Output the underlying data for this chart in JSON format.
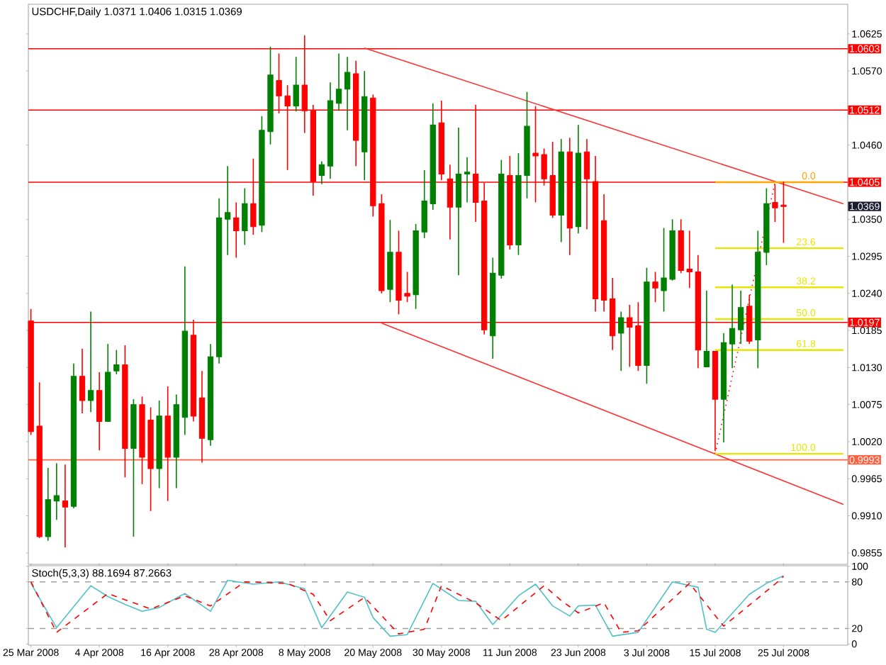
{
  "chart_data": [
    {
      "type": "candlestick",
      "title": "USDCHF,Daily 1.0371 1.0406 1.0315 1.0369",
      "categories": [
        null,
        null,
        null,
        null,
        null,
        null,
        null,
        null,
        null,
        null,
        null,
        null,
        null,
        null,
        null,
        null,
        null,
        null,
        null,
        null,
        null,
        null,
        null,
        null,
        null,
        null,
        null,
        null,
        null,
        null,
        null,
        null,
        null,
        null,
        null,
        null,
        null,
        null,
        null,
        null,
        null,
        null,
        null,
        null,
        null,
        null,
        null,
        null,
        null,
        null,
        null,
        null,
        null,
        null,
        null,
        null,
        null,
        null,
        null,
        null,
        null,
        null,
        null,
        null,
        null,
        null,
        null,
        null,
        null,
        null,
        null,
        null,
        null,
        null,
        null,
        null,
        null,
        null,
        null,
        null,
        null,
        null,
        null,
        null,
        null,
        null,
        null,
        null,
        null,
        null,
        null,
        null,
        null,
        null,
        null,
        null
      ],
      "ohlc": [
        [
          1.0199,
          1.0217,
          1.003,
          1.0035
        ],
        [
          1.0043,
          1.0108,
          0.9877,
          0.9879
        ],
        [
          0.9879,
          0.9981,
          0.9873,
          0.9934
        ],
        [
          0.9932,
          0.9988,
          0.9904,
          0.994
        ],
        [
          0.9932,
          0.9986,
          0.9863,
          0.9923
        ],
        [
          0.9924,
          1.0136,
          0.9921,
          1.0117
        ],
        [
          1.0117,
          1.0158,
          1.0062,
          1.0081
        ],
        [
          1.0081,
          1.0213,
          1.0064,
          1.0096
        ],
        [
          1.0096,
          1.0123,
          1.0007,
          1.005
        ],
        [
          1.005,
          1.0165,
          1.005,
          1.0123
        ],
        [
          1.0125,
          1.0156,
          1.012,
          1.0134
        ],
        [
          1.0134,
          1.0163,
          0.9967,
          1.001
        ],
        [
          1.001,
          1.0083,
          0.9879,
          1.0075
        ],
        [
          1.0075,
          1.0087,
          0.9957,
          0.9997
        ],
        [
          1.0052,
          1.0071,
          0.9917,
          0.998
        ],
        [
          0.998,
          1.0081,
          0.9951,
          1.0058
        ],
        [
          1.0058,
          1.0102,
          0.9932,
          0.9997
        ],
        [
          0.9997,
          1.009,
          0.9951,
          1.0075
        ],
        [
          1.0056,
          1.028,
          1.003,
          1.0184
        ],
        [
          1.0178,
          1.0201,
          1.005,
          1.0058
        ],
        [
          1.0085,
          1.0125,
          0.9989,
          1.0025
        ],
        [
          1.0023,
          1.0165,
          1.0014,
          1.0146
        ],
        [
          1.0146,
          1.0381,
          1.0136,
          1.0352
        ],
        [
          1.035,
          1.0429,
          1.0297,
          1.036
        ],
        [
          1.0352,
          1.0375,
          1.0293,
          1.0333
        ],
        [
          1.0333,
          1.0396,
          1.0312,
          1.0373
        ],
        [
          1.0373,
          1.044,
          1.0327,
          1.0339
        ],
        [
          1.0341,
          1.0503,
          1.0331,
          1.0482
        ],
        [
          1.048,
          1.0606,
          1.0461,
          1.0564
        ],
        [
          1.0556,
          1.0596,
          1.0507,
          1.0533
        ],
        [
          1.0533,
          1.0549,
          1.0423,
          1.0518
        ],
        [
          1.0518,
          1.0591,
          1.051,
          1.0549
        ],
        [
          1.0549,
          1.0623,
          1.0478,
          1.0511
        ],
        [
          1.0511,
          1.052,
          1.0385,
          1.0406
        ],
        [
          1.0415,
          1.0436,
          1.0402,
          1.0431
        ],
        [
          1.0429,
          1.0553,
          1.041,
          1.0526
        ],
        [
          1.0522,
          1.0596,
          1.0511,
          1.0543
        ],
        [
          1.0543,
          1.0591,
          1.0482,
          1.0568
        ],
        [
          1.0566,
          1.0585,
          1.0429,
          1.0467
        ],
        [
          1.045,
          1.057,
          1.0408,
          1.0532
        ],
        [
          1.053,
          1.0535,
          1.0354,
          1.037
        ],
        [
          1.0373,
          1.0387,
          1.024,
          1.0244
        ],
        [
          1.0246,
          1.0349,
          1.0227,
          1.0301
        ],
        [
          1.0301,
          1.0333,
          1.0209,
          1.023
        ],
        [
          1.024,
          1.0272,
          1.0227,
          1.0236
        ],
        [
          1.0238,
          1.0343,
          1.0217,
          1.0333
        ],
        [
          1.0331,
          1.0423,
          1.0322,
          1.0377
        ],
        [
          1.0373,
          1.0522,
          1.0364,
          1.049
        ],
        [
          1.0493,
          1.0526,
          1.0408,
          1.0417
        ],
        [
          1.041,
          1.0431,
          1.032,
          1.0368
        ],
        [
          1.0368,
          1.0486,
          1.0267,
          1.0417
        ],
        [
          1.0417,
          1.0442,
          1.0375,
          1.042
        ],
        [
          1.0417,
          1.052,
          1.0346,
          1.0375
        ],
        [
          1.0377,
          1.0404,
          1.0179,
          1.0186
        ],
        [
          1.0177,
          1.0293,
          1.0143,
          1.027
        ],
        [
          1.0267,
          1.0438,
          1.0262,
          1.0417
        ],
        [
          1.0415,
          1.0444,
          1.0305,
          1.0312
        ],
        [
          1.0312,
          1.0448,
          1.0297,
          1.0415
        ],
        [
          1.0415,
          1.0539,
          1.0381,
          1.0488
        ],
        [
          1.0448,
          1.0518,
          1.0375,
          1.0444
        ],
        [
          1.0446,
          1.0455,
          1.04,
          1.041
        ],
        [
          1.0415,
          1.0465,
          1.0352,
          1.0356
        ],
        [
          1.0356,
          1.0469,
          1.0316,
          1.045
        ],
        [
          1.045,
          1.0471,
          1.0297,
          1.0337
        ],
        [
          1.0339,
          1.049,
          1.0329,
          1.0448
        ],
        [
          1.045,
          1.0469,
          1.0335,
          1.041
        ],
        [
          1.0406,
          1.0444,
          1.0213,
          1.0232
        ],
        [
          1.0348,
          1.0387,
          1.0213,
          1.023
        ],
        [
          1.0232,
          1.0263,
          1.0156,
          1.0177
        ],
        [
          1.0181,
          1.0213,
          1.0125,
          1.0204
        ],
        [
          1.0204,
          1.0223,
          1.0131,
          1.019
        ],
        [
          1.0192,
          1.0227,
          1.0125,
          1.0133
        ],
        [
          1.0133,
          1.0278,
          1.0106,
          1.0257
        ],
        [
          1.0257,
          1.0272,
          1.0227,
          1.0248
        ],
        [
          1.0244,
          1.0337,
          1.0213,
          1.0263
        ],
        [
          1.0261,
          1.035,
          1.0259,
          1.0333
        ],
        [
          1.0333,
          1.035,
          1.027,
          1.0274
        ],
        [
          1.0276,
          1.0333,
          1.0248,
          1.0272
        ],
        [
          1.0272,
          1.0297,
          1.0129,
          1.0156
        ],
        [
          1.0131,
          1.0244,
          1.0131,
          1.0154
        ],
        [
          1.0154,
          1.0154,
          1.0006,
          1.0083
        ],
        [
          1.0083,
          1.0181,
          1.0019,
          1.0167
        ],
        [
          1.0165,
          1.0253,
          1.0129,
          1.0188
        ],
        [
          1.0186,
          1.0244,
          1.0165,
          1.0219
        ],
        [
          1.0221,
          1.0238,
          1.0165,
          1.0169
        ],
        [
          1.0171,
          1.0333,
          1.0129,
          1.0301
        ],
        [
          1.0301,
          1.0396,
          1.0282,
          1.0373
        ],
        [
          1.0375,
          1.0402,
          1.0346,
          1.0367
        ],
        [
          1.0371,
          1.0406,
          1.0315,
          1.0369
        ],
        null,
        null,
        null,
        null,
        null,
        null,
        null
      ],
      "colors": [
        "#ff0000",
        "#ff0000",
        "#008000",
        "#008000",
        "#ff0000",
        "#008000",
        "#ff0000",
        "#008000",
        "#ff0000",
        "#008000",
        "#008000",
        "#ff0000",
        "#008000",
        "#ff0000",
        "#ff0000",
        "#008000",
        "#ff0000",
        "#008000",
        "#008000",
        "#ff0000",
        "#ff0000",
        "#008000",
        "#008000",
        "#008000",
        "#ff0000",
        "#008000",
        "#ff0000",
        "#008000",
        "#008000",
        "#ff0000",
        "#ff0000",
        "#008000",
        "#ff0000",
        "#ff0000",
        "#008000",
        "#008000",
        "#008000",
        "#008000",
        "#ff0000",
        "#008000",
        "#ff0000",
        "#ff0000",
        "#008000",
        "#ff0000",
        "#ff0000",
        "#008000",
        "#008000",
        "#008000",
        "#ff0000",
        "#ff0000",
        "#008000",
        "#008000",
        "#ff0000",
        "#ff0000",
        "#008000",
        "#008000",
        "#ff0000",
        "#008000",
        "#008000",
        "#ff0000",
        "#ff0000",
        "#ff0000",
        "#008000",
        "#ff0000",
        "#008000",
        "#ff0000",
        "#ff0000",
        "#ff0000",
        "#ff0000",
        "#008000",
        "#ff0000",
        "#ff0000",
        "#008000",
        "#ff0000",
        "#008000",
        "#008000",
        "#ff0000",
        "#ff0000",
        "#ff0000",
        "#008000",
        "#ff0000",
        "#008000",
        "#008000",
        "#008000",
        "#ff0000",
        "#008000",
        "#008000",
        "#ff0000",
        "#ff0000",
        null,
        null,
        null,
        null,
        null,
        null,
        null
      ],
      "ylim": [
        0.9838,
        1.0669
      ],
      "yticks": [
        {
          "value": 0.9855,
          "label": "0.9855"
        },
        {
          "value": 0.991,
          "label": "0.9910"
        },
        {
          "value": 0.9965,
          "label": "0.9965"
        },
        {
          "value": 1.002,
          "label": "1.0020"
        },
        {
          "value": 1.0075,
          "label": "1.0075"
        },
        {
          "value": 1.013,
          "label": "1.0130"
        },
        {
          "value": 1.0185,
          "label": "1.0185"
        },
        {
          "value": 1.024,
          "label": "1.0240"
        },
        {
          "value": 1.0295,
          "label": "1.0295"
        },
        {
          "value": 1.035,
          "label": "1.0350"
        },
        {
          "value": 1.046,
          "label": "1.0460"
        },
        {
          "value": 1.057,
          "label": "1.0570"
        },
        {
          "value": 1.0625,
          "label": "1.0625"
        }
      ],
      "tick_labels": "y",
      "ref_lines": [
        {
          "axis": "y",
          "value": 1.0603,
          "label": "1.0603",
          "color": "#ff0000"
        },
        {
          "axis": "y",
          "value": 1.0512,
          "label": "1.0512",
          "color": "#ff0000"
        },
        {
          "axis": "y",
          "value": 1.0405,
          "label": "1.0405",
          "color": "#ff0000"
        },
        {
          "axis": "y",
          "value": 1.0197,
          "label": "1.0197",
          "color": "#ff0000"
        },
        {
          "axis": "y",
          "value": 0.9993,
          "label": "0.9993",
          "color": "#ff6040"
        }
      ],
      "annotations": [
        "1.0369"
      ],
      "series": [
        {
          "type": "line",
          "color": "#ff3030",
          "values": [
            null,
            null,
            null,
            null,
            null,
            null,
            null,
            null,
            null,
            null,
            null,
            null,
            null,
            null,
            null,
            null,
            null,
            null,
            null,
            null,
            null,
            null,
            null,
            null,
            null,
            null,
            null,
            null,
            null,
            null,
            null,
            null,
            null,
            null,
            null,
            null,
            null,
            null,
            null,
            1.0604,
            null,
            null,
            null,
            null,
            null,
            null,
            null,
            null,
            null,
            null,
            null,
            null,
            null,
            null,
            null,
            null,
            null,
            null,
            null,
            null,
            null,
            null,
            null,
            null,
            null,
            null,
            null,
            null,
            null,
            null,
            null,
            null,
            null,
            null,
            null,
            null,
            null,
            null,
            null,
            null,
            null,
            null,
            null,
            null,
            null,
            null,
            null,
            null,
            null,
            null,
            null,
            null,
            null,
            null,
            null,
            1.0373
          ]
        },
        {
          "type": "line",
          "color": "#ff3030",
          "values": [
            null,
            null,
            null,
            null,
            null,
            null,
            null,
            null,
            null,
            null,
            null,
            null,
            null,
            null,
            null,
            null,
            null,
            null,
            null,
            null,
            null,
            null,
            null,
            null,
            null,
            null,
            null,
            null,
            null,
            null,
            null,
            null,
            null,
            null,
            null,
            null,
            null,
            null,
            null,
            null,
            null,
            1.0196,
            null,
            null,
            null,
            null,
            null,
            null,
            null,
            null,
            null,
            null,
            null,
            null,
            null,
            null,
            null,
            null,
            null,
            null,
            null,
            null,
            null,
            null,
            null,
            null,
            null,
            null,
            null,
            null,
            null,
            null,
            null,
            null,
            null,
            null,
            null,
            null,
            null,
            null,
            null,
            null,
            null,
            null,
            null,
            null,
            null,
            null,
            null,
            null,
            null,
            null,
            null,
            null,
            null,
            0.9927
          ]
        },
        {
          "type": "line",
          "color": "#ff0000",
          "line_style": "dotted",
          "values": [
            null,
            null,
            null,
            null,
            null,
            null,
            null,
            null,
            null,
            null,
            null,
            null,
            null,
            null,
            null,
            null,
            null,
            null,
            null,
            null,
            null,
            null,
            null,
            null,
            null,
            null,
            null,
            null,
            null,
            null,
            null,
            null,
            null,
            null,
            null,
            null,
            null,
            null,
            null,
            null,
            null,
            null,
            null,
            null,
            null,
            null,
            null,
            null,
            null,
            null,
            null,
            null,
            null,
            null,
            null,
            null,
            null,
            null,
            null,
            null,
            null,
            null,
            null,
            null,
            null,
            null,
            null,
            null,
            null,
            null,
            null,
            null,
            null,
            null,
            null,
            null,
            null,
            null,
            null,
            null,
            1.0002,
            null,
            null,
            null,
            null,
            null,
            null,
            1.0405,
            null,
            null,
            null,
            null,
            null,
            null,
            null,
            null
          ]
        },
        {
          "type": "line",
          "name": "0.0",
          "color": "#ffa500",
          "values": [
            null,
            null,
            null,
            null,
            null,
            null,
            null,
            null,
            null,
            null,
            null,
            null,
            null,
            null,
            null,
            null,
            null,
            null,
            null,
            null,
            null,
            null,
            null,
            null,
            null,
            null,
            null,
            null,
            null,
            null,
            null,
            null,
            null,
            null,
            null,
            null,
            null,
            null,
            null,
            null,
            null,
            null,
            null,
            null,
            null,
            null,
            null,
            null,
            null,
            null,
            null,
            null,
            null,
            null,
            null,
            null,
            null,
            null,
            null,
            null,
            null,
            null,
            null,
            null,
            null,
            null,
            null,
            null,
            null,
            null,
            null,
            null,
            null,
            null,
            null,
            null,
            null,
            null,
            null,
            null,
            1.0405,
            null,
            null,
            null,
            null,
            null,
            null,
            null,
            null,
            null,
            null,
            null,
            null,
            null,
            null,
            1.0405
          ]
        },
        {
          "type": "line",
          "name": "23.6",
          "color": "#e6e600",
          "values": [
            null,
            null,
            null,
            null,
            null,
            null,
            null,
            null,
            null,
            null,
            null,
            null,
            null,
            null,
            null,
            null,
            null,
            null,
            null,
            null,
            null,
            null,
            null,
            null,
            null,
            null,
            null,
            null,
            null,
            null,
            null,
            null,
            null,
            null,
            null,
            null,
            null,
            null,
            null,
            null,
            null,
            null,
            null,
            null,
            null,
            null,
            null,
            null,
            null,
            null,
            null,
            null,
            null,
            null,
            null,
            null,
            null,
            null,
            null,
            null,
            null,
            null,
            null,
            null,
            null,
            null,
            null,
            null,
            null,
            null,
            null,
            null,
            null,
            null,
            null,
            null,
            null,
            null,
            null,
            null,
            1.0307,
            null,
            null,
            null,
            null,
            null,
            null,
            null,
            null,
            null,
            null,
            null,
            null,
            null,
            null,
            1.0307
          ]
        },
        {
          "type": "line",
          "name": "38.2",
          "color": "#e6e600",
          "values": [
            null,
            null,
            null,
            null,
            null,
            null,
            null,
            null,
            null,
            null,
            null,
            null,
            null,
            null,
            null,
            null,
            null,
            null,
            null,
            null,
            null,
            null,
            null,
            null,
            null,
            null,
            null,
            null,
            null,
            null,
            null,
            null,
            null,
            null,
            null,
            null,
            null,
            null,
            null,
            null,
            null,
            null,
            null,
            null,
            null,
            null,
            null,
            null,
            null,
            null,
            null,
            null,
            null,
            null,
            null,
            null,
            null,
            null,
            null,
            null,
            null,
            null,
            null,
            null,
            null,
            null,
            null,
            null,
            null,
            null,
            null,
            null,
            null,
            null,
            null,
            null,
            null,
            null,
            null,
            null,
            1.0249,
            null,
            null,
            null,
            null,
            null,
            null,
            null,
            null,
            null,
            null,
            null,
            null,
            null,
            null,
            1.0249
          ]
        },
        {
          "type": "line",
          "name": "50.0",
          "color": "#e6e600",
          "values": [
            null,
            null,
            null,
            null,
            null,
            null,
            null,
            null,
            null,
            null,
            null,
            null,
            null,
            null,
            null,
            null,
            null,
            null,
            null,
            null,
            null,
            null,
            null,
            null,
            null,
            null,
            null,
            null,
            null,
            null,
            null,
            null,
            null,
            null,
            null,
            null,
            null,
            null,
            null,
            null,
            null,
            null,
            null,
            null,
            null,
            null,
            null,
            null,
            null,
            null,
            null,
            null,
            null,
            null,
            null,
            null,
            null,
            null,
            null,
            null,
            null,
            null,
            null,
            null,
            null,
            null,
            null,
            null,
            null,
            null,
            null,
            null,
            null,
            null,
            null,
            null,
            null,
            null,
            null,
            null,
            1.0202,
            null,
            null,
            null,
            null,
            null,
            null,
            null,
            null,
            null,
            null,
            null,
            null,
            null,
            null,
            1.0202
          ]
        },
        {
          "type": "line",
          "name": "61.8",
          "color": "#e6e600",
          "values": [
            null,
            null,
            null,
            null,
            null,
            null,
            null,
            null,
            null,
            null,
            null,
            null,
            null,
            null,
            null,
            null,
            null,
            null,
            null,
            null,
            null,
            null,
            null,
            null,
            null,
            null,
            null,
            null,
            null,
            null,
            null,
            null,
            null,
            null,
            null,
            null,
            null,
            null,
            null,
            null,
            null,
            null,
            null,
            null,
            null,
            null,
            null,
            null,
            null,
            null,
            null,
            null,
            null,
            null,
            null,
            null,
            null,
            null,
            null,
            null,
            null,
            null,
            null,
            null,
            null,
            null,
            null,
            null,
            null,
            null,
            null,
            null,
            null,
            null,
            null,
            null,
            null,
            null,
            null,
            null,
            1.0156,
            null,
            null,
            null,
            null,
            null,
            null,
            null,
            null,
            null,
            null,
            null,
            null,
            null,
            null,
            1.0156
          ]
        },
        {
          "type": "line",
          "name": "100.0",
          "color": "#e6e600",
          "values": [
            null,
            null,
            null,
            null,
            null,
            null,
            null,
            null,
            null,
            null,
            null,
            null,
            null,
            null,
            null,
            null,
            null,
            null,
            null,
            null,
            null,
            null,
            null,
            null,
            null,
            null,
            null,
            null,
            null,
            null,
            null,
            null,
            null,
            null,
            null,
            null,
            null,
            null,
            null,
            null,
            null,
            null,
            null,
            null,
            null,
            null,
            null,
            null,
            null,
            null,
            null,
            null,
            null,
            null,
            null,
            null,
            null,
            null,
            null,
            null,
            null,
            null,
            null,
            null,
            null,
            null,
            null,
            null,
            null,
            null,
            null,
            null,
            null,
            null,
            null,
            null,
            null,
            null,
            null,
            null,
            1.0002,
            null,
            null,
            null,
            null,
            null,
            null,
            null,
            null,
            null,
            null,
            null,
            null,
            null,
            null,
            1.0002
          ]
        }
      ]
    },
    {
      "type": "line",
      "title": "Stoch(5,3,3) 88.1694 87.2663",
      "marker": "none",
      "categories": [
        "25 Mar 2008",
        null,
        null,
        null,
        null,
        null,
        null,
        null,
        "4 Apr 2008",
        null,
        null,
        null,
        null,
        null,
        null,
        null,
        "16 Apr 2008",
        null,
        null,
        null,
        null,
        null,
        null,
        null,
        "28 Apr 2008",
        null,
        null,
        null,
        null,
        null,
        null,
        null,
        "8 May 2008",
        null,
        null,
        null,
        null,
        null,
        null,
        null,
        "20 May 2008",
        null,
        null,
        null,
        null,
        null,
        null,
        null,
        "30 May 2008",
        null,
        null,
        null,
        null,
        null,
        null,
        null,
        "11 Jun 2008",
        null,
        null,
        null,
        null,
        null,
        null,
        null,
        "23 Jun 2008",
        null,
        null,
        null,
        null,
        null,
        null,
        null,
        "3 Jul 2008",
        null,
        null,
        null,
        null,
        null,
        null,
        null,
        "15 Jul 2008",
        null,
        null,
        null,
        null,
        null,
        null,
        null,
        "25 Jul 2008",
        null,
        null,
        null,
        null,
        null,
        null,
        null
      ],
      "ylim": [
        -1.5,
        100.7
      ],
      "yticks": [
        0,
        20,
        80,
        100
      ],
      "ref_lines": [
        {
          "axis": "y",
          "value": 20,
          "color": "#a0a0a0",
          "line_style": "dashed"
        },
        {
          "axis": "y",
          "value": 80,
          "color": "#a0a0a0",
          "line_style": "dashed"
        }
      ],
      "series": [
        {
          "color": "#50c0c8",
          "values": [
            78,
            null,
            null,
            21,
            null,
            null,
            null,
            75,
            null,
            61,
            null,
            51,
            null,
            42,
            null,
            47,
            null,
            null,
            65,
            null,
            null,
            42,
            null,
            82,
            null,
            null,
            77,
            null,
            null,
            80,
            null,
            null,
            71,
            null,
            21,
            null,
            null,
            67,
            null,
            60,
            34,
            null,
            10,
            null,
            12,
            null,
            null,
            78,
            null,
            null,
            56,
            null,
            55,
            null,
            25,
            null,
            null,
            62,
            null,
            77,
            null,
            49,
            null,
            36,
            49,
            null,
            50,
            null,
            10,
            null,
            null,
            15,
            null,
            null,
            null,
            80,
            null,
            null,
            73,
            19,
            15,
            null,
            null,
            null,
            64,
            null,
            78,
            null,
            88,
            null,
            null,
            null,
            null,
            null,
            null,
            null
          ]
        },
        {
          "color": "#ff0000",
          "line_style": "dashed",
          "values": [
            80,
            null,
            null,
            15,
            null,
            null,
            null,
            null,
            null,
            65,
            null,
            null,
            null,
            null,
            45,
            null,
            null,
            null,
            62,
            null,
            null,
            49,
            null,
            null,
            null,
            80,
            null,
            null,
            null,
            null,
            78,
            null,
            null,
            64,
            null,
            30,
            null,
            null,
            null,
            60,
            null,
            null,
            null,
            13,
            null,
            null,
            19,
            null,
            75,
            null,
            null,
            null,
            53,
            null,
            null,
            30,
            null,
            null,
            null,
            null,
            75,
            null,
            56,
            null,
            40,
            null,
            null,
            53,
            null,
            15,
            null,
            17,
            null,
            null,
            null,
            null,
            null,
            78,
            null,
            null,
            null,
            23,
            null,
            null,
            null,
            null,
            null,
            77,
            87,
            null,
            null,
            null,
            null,
            null,
            null,
            null
          ]
        }
      ]
    }
  ]
}
